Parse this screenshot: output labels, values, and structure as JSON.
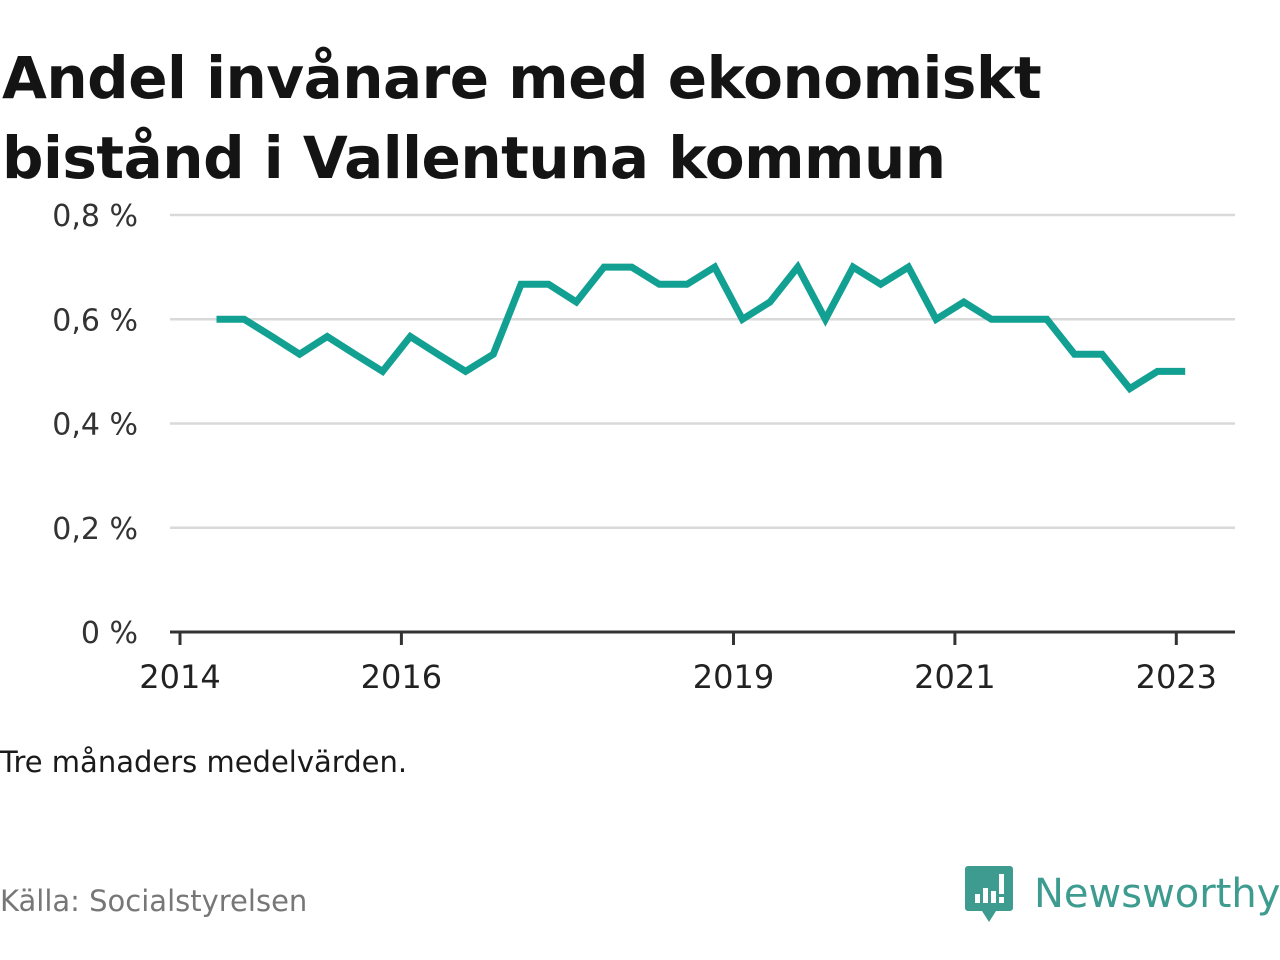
{
  "title": "Andel invånare med ekonomiskt bistånd i Vallentuna kommun",
  "note": "Tre månaders medelvärden.",
  "source": "Källa: Socialstyrelsen",
  "brand": {
    "name": "Newsworthy",
    "icon": "newsworthy-logo-icon",
    "color": "#3d9b8f"
  },
  "colors": {
    "line": "#12a092",
    "grid": "#d9d9d9",
    "axis": "#333333"
  },
  "chart_data": {
    "type": "line",
    "title": "Andel invånare med ekonomiskt bistånd i Vallentuna kommun",
    "xlabel": "",
    "ylabel": "",
    "ylim": [
      0,
      0.8
    ],
    "xlim": [
      2014,
      2023.5
    ],
    "yticks": [
      0,
      0.2,
      0.4,
      0.6,
      0.8
    ],
    "ytick_labels": [
      "0 %",
      "0,2 %",
      "0,4 %",
      "0,6 %",
      "0,8 %"
    ],
    "xticks": [
      2014,
      2016,
      2019,
      2021,
      2023
    ],
    "xtick_labels": [
      "2014",
      "2016",
      "2019",
      "2021",
      "2023"
    ],
    "grid": true,
    "legend": "none",
    "series": [
      {
        "color": "#12a092",
        "x": [
          2014.33,
          2014.58,
          2014.83,
          2015.08,
          2015.33,
          2015.58,
          2015.83,
          2016.08,
          2016.33,
          2016.58,
          2016.83,
          2017.08,
          2017.33,
          2017.58,
          2017.83,
          2018.08,
          2018.33,
          2018.58,
          2018.83,
          2019.08,
          2019.33,
          2019.58,
          2019.83,
          2020.08,
          2020.33,
          2020.58,
          2020.83,
          2021.08,
          2021.33,
          2021.58,
          2021.83,
          2022.08,
          2022.33,
          2022.58,
          2022.83,
          2023.08
        ],
        "y": [
          0.6,
          0.6,
          0.567,
          0.533,
          0.567,
          0.533,
          0.5,
          0.567,
          0.533,
          0.5,
          0.533,
          0.667,
          0.667,
          0.633,
          0.7,
          0.7,
          0.667,
          0.667,
          0.7,
          0.6,
          0.633,
          0.7,
          0.6,
          0.7,
          0.667,
          0.7,
          0.6,
          0.633,
          0.6,
          0.6,
          0.6,
          0.533,
          0.533,
          0.467,
          0.5,
          0.5
        ]
      }
    ]
  }
}
